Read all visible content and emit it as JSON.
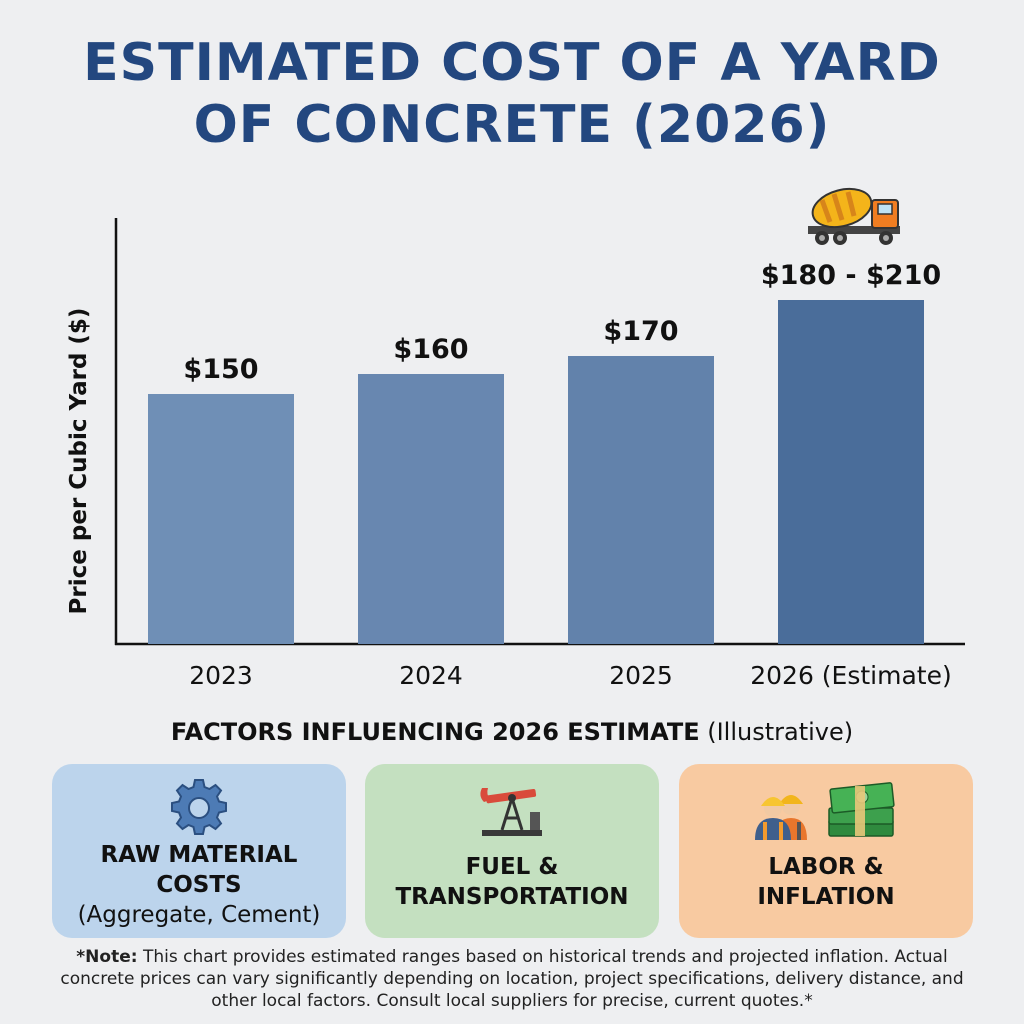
{
  "title": {
    "line1": "ESTIMATED COST OF A YARD",
    "line2": "OF CONCRETE (2026)"
  },
  "chart_data": {
    "type": "bar",
    "ylabel": "Price per Cubic Yard ($)",
    "xlabel": "",
    "categories": [
      "2023",
      "2024",
      "2025",
      "2026 (Estimate)"
    ],
    "values": [
      150,
      160,
      170,
      195
    ],
    "value_labels": [
      "$150",
      "$160",
      "$170",
      "$180 - $210"
    ],
    "range_2026": [
      180,
      210
    ],
    "bar_colors": [
      "#6f8fb6",
      "#6887b0",
      "#6282ab",
      "#4a6d9a"
    ],
    "ylim": [
      0,
      210
    ],
    "grid": false
  },
  "factors": {
    "heading_bold": "FACTORS INFLUENCING 2026 ESTIMATE",
    "heading_normal": "(Illustrative)",
    "cards": [
      {
        "icon": "gear-icon",
        "lines": [
          "RAW MATERIAL",
          "COSTS"
        ],
        "sub": "(Aggregate, Cement)",
        "color": "#bcd4ec"
      },
      {
        "icon": "oil-pump-icon",
        "lines": [
          "FUEL &",
          "TRANSPORTATION"
        ],
        "color": "#c4e0c0"
      },
      {
        "icon": "workers-money-icon",
        "lines": [
          "LABOR &",
          "INFLATION"
        ],
        "color": "#f8caa1"
      }
    ]
  },
  "note": {
    "bold": "*Note:",
    "text": "This chart provides estimated ranges based on historical trends and projected inflation. Actual concrete prices can vary significantly depending on location, project specifications, delivery distance, and other local factors. Consult local suppliers for precise, current quotes.*"
  },
  "colors": {
    "title": "#23477f",
    "background": "#eeeff1"
  }
}
